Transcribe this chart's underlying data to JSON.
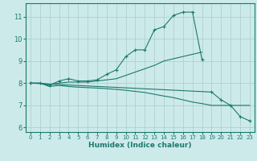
{
  "xlabel": "Humidex (Indice chaleur)",
  "background_color": "#cdeaea",
  "grid_color": "#b0d0d0",
  "line_color": "#1a7a6e",
  "xlim": [
    -0.5,
    23.5
  ],
  "ylim": [
    5.8,
    11.6
  ],
  "yticks": [
    6,
    7,
    8,
    9,
    10,
    11
  ],
  "xticks": [
    0,
    1,
    2,
    3,
    4,
    5,
    6,
    7,
    8,
    9,
    10,
    11,
    12,
    13,
    14,
    15,
    16,
    17,
    18,
    19,
    20,
    21,
    22,
    23
  ],
  "series": [
    {
      "x": [
        0,
        1,
        2,
        3,
        4,
        5,
        6,
        7,
        8,
        9,
        10,
        11,
        12,
        13,
        14,
        15,
        16,
        17,
        18
      ],
      "y": [
        8.0,
        8.0,
        7.9,
        8.1,
        8.2,
        8.1,
        8.1,
        8.15,
        8.4,
        8.6,
        9.2,
        9.5,
        9.5,
        10.4,
        10.55,
        11.05,
        11.2,
        11.2,
        9.05
      ],
      "marker": true
    },
    {
      "x": [
        0,
        1,
        2,
        3,
        4,
        5,
        6,
        7,
        8,
        9,
        10,
        11,
        12,
        13,
        14,
        15,
        16,
        17,
        18
      ],
      "y": [
        8.0,
        8.0,
        7.95,
        8.0,
        8.05,
        8.05,
        8.05,
        8.1,
        8.15,
        8.2,
        8.35,
        8.5,
        8.65,
        8.8,
        9.0,
        9.1,
        9.2,
        9.3,
        9.4
      ],
      "marker": false
    },
    {
      "x": [
        0,
        1,
        2,
        3,
        4,
        5,
        6,
        7,
        8,
        9,
        10,
        11,
        12,
        13,
        14,
        15,
        16,
        17,
        18,
        19,
        20,
        21,
        22,
        23
      ],
      "y": [
        8.0,
        8.0,
        7.85,
        7.9,
        7.85,
        7.82,
        7.8,
        7.78,
        7.75,
        7.72,
        7.68,
        7.63,
        7.58,
        7.5,
        7.42,
        7.35,
        7.25,
        7.15,
        7.08,
        7.0,
        7.0,
        7.0,
        7.0,
        7.0
      ],
      "marker": false
    },
    {
      "x": [
        0,
        19,
        20,
        21,
        22,
        23
      ],
      "y": [
        8.0,
        7.6,
        7.25,
        7.0,
        6.5,
        6.3
      ],
      "marker": true
    }
  ]
}
